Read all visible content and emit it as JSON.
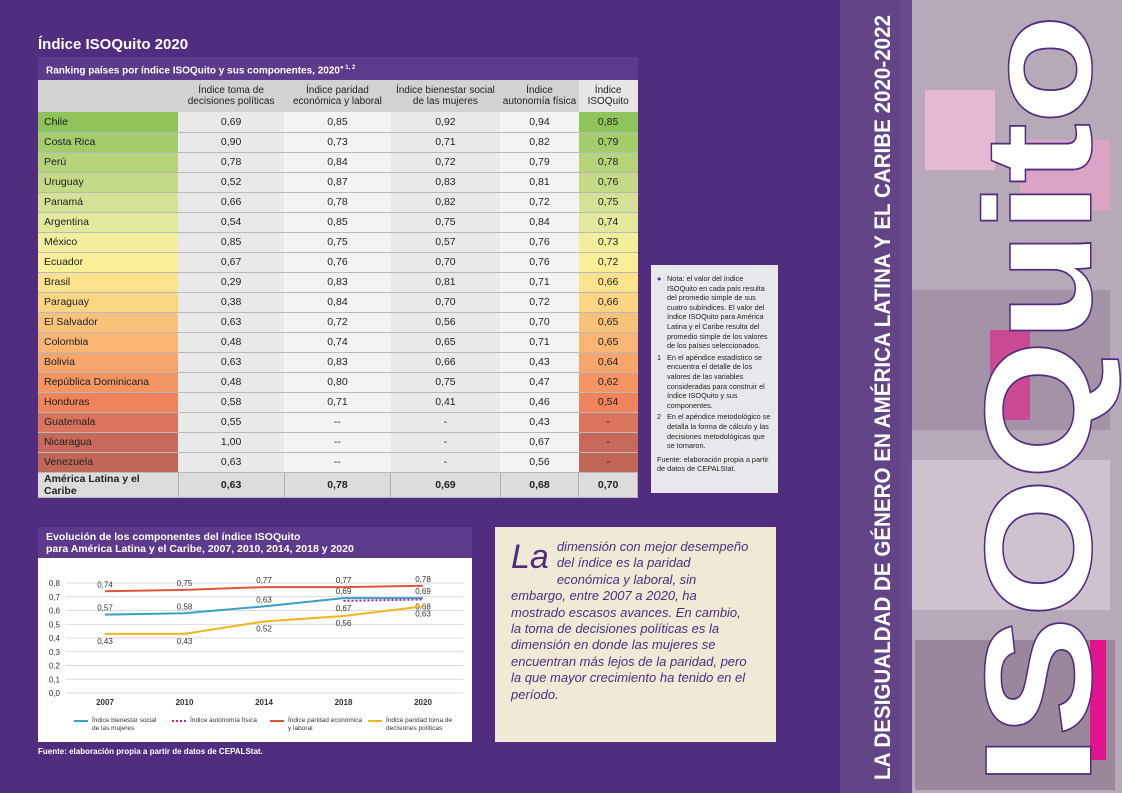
{
  "title": "Índice ISOQuito 2020",
  "table": {
    "caption": "Ranking países por índice ISOQuito y sus componentes, 2020",
    "caption_sup": "1, 2",
    "headers": [
      "Índice toma de decisiones políticas",
      "Índice paridad económica y laboral",
      "Índice bienestar social de las mujeres",
      "Índice autonomía física",
      "Índice ISOQuito"
    ],
    "rows": [
      {
        "cells": [
          "Chile",
          "0,69",
          "0,85",
          "0,92",
          "0,94",
          "0,85"
        ],
        "color": "#8fc45a"
      },
      {
        "cells": [
          "Costa Rica",
          "0,90",
          "0,73",
          "0,71",
          "0,82",
          "0,79"
        ],
        "color": "#a3cc6a"
      },
      {
        "cells": [
          "Perú",
          "0,78",
          "0,84",
          "0,72",
          "0,79",
          "0,78"
        ],
        "color": "#b5d47a"
      },
      {
        "cells": [
          "Uruguay",
          "0,52",
          "0,87",
          "0,83",
          "0,81",
          "0,76"
        ],
        "color": "#c4da87"
      },
      {
        "cells": [
          "Panamá",
          "0,66",
          "0,78",
          "0,82",
          "0,72",
          "0,75"
        ],
        "color": "#d3e294"
      },
      {
        "cells": [
          "Argentina",
          "0,54",
          "0,85",
          "0,75",
          "0,84",
          "0,74"
        ],
        "color": "#e3e99c"
      },
      {
        "cells": [
          "México",
          "0,85",
          "0,75",
          "0,57",
          "0,76",
          "0,73"
        ],
        "color": "#f2ee9b"
      },
      {
        "cells": [
          "Ecuador",
          "0,67",
          "0,76",
          "0,70",
          "0,76",
          "0,72"
        ],
        "color": "#f8ef98"
      },
      {
        "cells": [
          "Brasil",
          "0,29",
          "0,83",
          "0,81",
          "0,71",
          "0,66"
        ],
        "color": "#fbe28c"
      },
      {
        "cells": [
          "Paraguay",
          "0,38",
          "0,84",
          "0,70",
          "0,72",
          "0,66"
        ],
        "color": "#fbd484"
      },
      {
        "cells": [
          "El Salvador",
          "0,63",
          "0,72",
          "0,56",
          "0,70",
          "0,65"
        ],
        "color": "#f9c27a"
      },
      {
        "cells": [
          "Colombia",
          "0,48",
          "0,74",
          "0,65",
          "0,71",
          "0,65"
        ],
        "color": "#f8b574"
      },
      {
        "cells": [
          "Bolivia",
          "0,63",
          "0,83",
          "0,66",
          "0,43",
          "0,64"
        ],
        "color": "#f6a66b"
      },
      {
        "cells": [
          "República Dominicana",
          "0,48",
          "0,80",
          "0,75",
          "0,47",
          "0,62"
        ],
        "color": "#f29563"
      },
      {
        "cells": [
          "Honduras",
          "0,58",
          "0,71",
          "0,41",
          "0,46",
          "0,54"
        ],
        "color": "#ee835c"
      },
      {
        "cells": [
          "Guatemala",
          "0,55",
          "--",
          "-",
          "0,43",
          "-"
        ],
        "color": "#d9745e"
      },
      {
        "cells": [
          "Nicaragua",
          "1,00",
          "--",
          "-",
          "0,67",
          "-"
        ],
        "color": "#c86a5b"
      },
      {
        "cells": [
          "Venezuela",
          "0,63",
          "--",
          "-",
          "0,56",
          "-"
        ],
        "color": "#c06757"
      }
    ],
    "total": [
      "América Latina y el Caribe",
      "0,63",
      "0,78",
      "0,69",
      "0,68",
      "0,70"
    ]
  },
  "notes": {
    "main": "Nota: el valor del índice ISOQuito en cada país resulta del promedio simple de sus cuatro subíndices. El valor del índice ISOQuito para América Latina y el Caribe resulta del promedio simple de los valores de los países seleccionados.",
    "footnotes": [
      {
        "num": "1",
        "text": "En el apéndice estadístico se encuentra el detalle de los valores de las variables consideradas para construir el índice ISOQuito y sus componentes."
      },
      {
        "num": "2",
        "text": "En el apéndice metodológico se detalla la forma de cálculo y las decisiones metodológicas que se tomaron."
      }
    ],
    "source": "Fuente: elaboración propia a partir de datos de CEPALStat."
  },
  "chart_data": {
    "type": "line",
    "title": "Evolución de los componentes del índice ISOQuito",
    "subtitle": "para América Latina y el Caribe, 2007, 2010, 2014, 2018 y 2020",
    "categories": [
      "2007",
      "2010",
      "2014",
      "2018",
      "2020"
    ],
    "ylim": [
      0,
      0.8
    ],
    "yticks": [
      {
        "value": 0,
        "label": "0,0"
      },
      {
        "value": 0.1,
        "label": "0,1"
      },
      {
        "value": 0.2,
        "label": "0,2"
      },
      {
        "value": 0.3,
        "label": "0,3"
      },
      {
        "value": 0.4,
        "label": "0,4"
      },
      {
        "value": 0.5,
        "label": "0,5"
      },
      {
        "value": 0.6,
        "label": "0,6"
      },
      {
        "value": 0.7,
        "label": "0,7"
      },
      {
        "value": 0.8,
        "label": "0,8"
      }
    ],
    "grid": true,
    "series": [
      {
        "name": "Índice bienestar social de las mujeres",
        "color": "#3aa0c8",
        "dashed": false,
        "values": [
          0.57,
          0.58,
          0.63,
          0.69,
          0.69
        ],
        "value_labels": [
          "0,57",
          "0,58",
          "0,63",
          "0,69",
          "0,69"
        ]
      },
      {
        "name": "Índice autonomía física",
        "color": "#c0208c",
        "dashed": true,
        "values": [
          null,
          null,
          null,
          0.67,
          0.68
        ],
        "value_labels": [
          null,
          null,
          null,
          "0,67",
          "0,68"
        ]
      },
      {
        "name": "Índice paridad económica y laboral",
        "color": "#e0553a",
        "dashed": false,
        "values": [
          0.74,
          0.75,
          0.77,
          0.77,
          0.78
        ],
        "value_labels": [
          "0,74",
          "0,75",
          "0,77",
          "0,77",
          "0,78"
        ]
      },
      {
        "name": "Índice paridad toma de decisiones políticas",
        "color": "#f2b51c",
        "dashed": false,
        "values": [
          0.43,
          0.43,
          0.52,
          0.56,
          0.63
        ],
        "value_labels": [
          "0,43",
          "0,43",
          "0,52",
          "0,56",
          "0,63"
        ]
      }
    ]
  },
  "chart_source": "Fuente: elaboración propia a partir de datos de CEPALStat.",
  "quote": {
    "lead": "La",
    "text": "dimensión con mejor desempeño del índice es la paridad económica y laboral, sin embargo, entre 2007 a 2020, ha mostrado escasos avances. En cambio, la toma de decisiones políticas es la dimensión en donde las mujeres se encuentran más lejos de la paridad, pero la que mayor crecimiento ha tenido en el período."
  },
  "side": {
    "title": "LA DESIGUALDAD DE GÉNERO EN AMÉRICA LATINA Y EL CARIBE 2020-2022",
    "logo": "ISOQuito"
  }
}
